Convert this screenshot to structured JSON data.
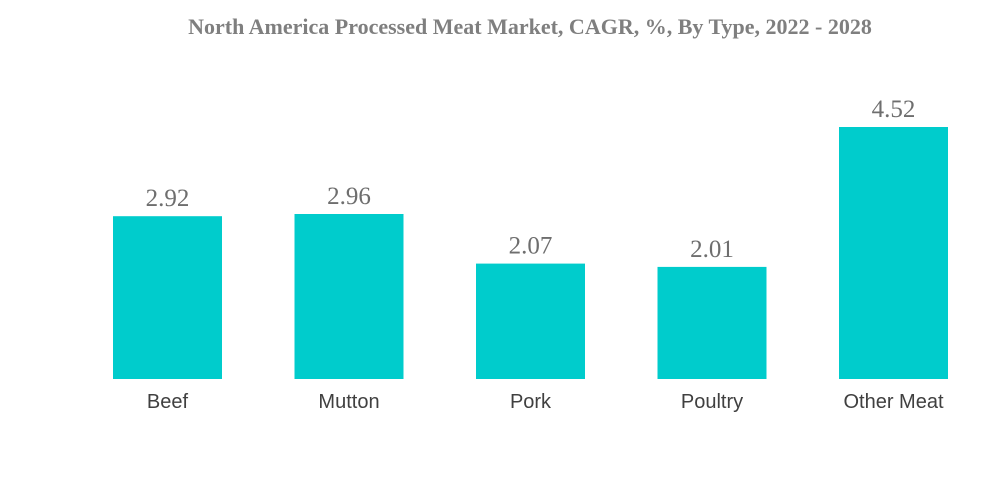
{
  "chart_data": {
    "type": "bar",
    "title": "North America Processed Meat Market, CAGR, %, By Type, 2022 - 2028",
    "categories": [
      "Beef",
      "Mutton",
      "Pork",
      "Poultry",
      "Other Meat"
    ],
    "values": [
      2.92,
      2.96,
      2.07,
      2.01,
      4.52
    ],
    "value_labels": [
      "2.92",
      "2.96",
      "2.07",
      "2.01",
      "4.52"
    ],
    "xlabel": "",
    "ylabel": "",
    "ylim": [
      0,
      4.52
    ],
    "grid": false,
    "legend": "none",
    "bar_color": "#00cccc"
  }
}
